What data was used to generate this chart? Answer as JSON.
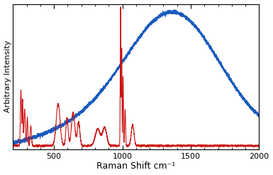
{
  "title": "",
  "xlabel": "Raman Shift cm⁻¹",
  "ylabel": "Arbitrary Intensity",
  "xlim": [
    200,
    2000
  ],
  "ylim": [
    0,
    1.0
  ],
  "x_ticks": [
    500,
    1000,
    1500,
    2000
  ],
  "background_color": "#ffffff",
  "line_blue_color": "#1a5abf",
  "line_red_color": "#cc1111",
  "linewidth_blue": 0.9,
  "linewidth_red": 0.8
}
